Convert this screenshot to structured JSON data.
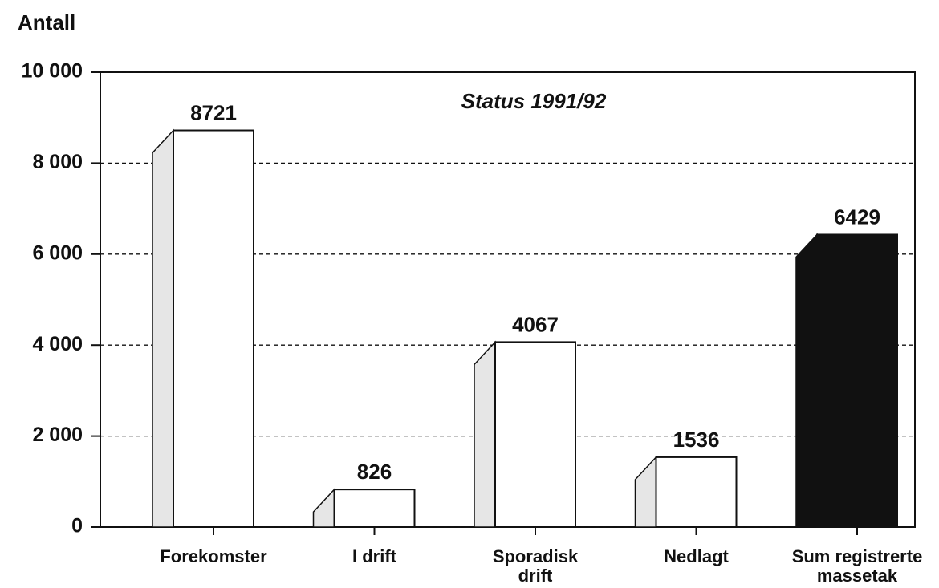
{
  "chart_data": {
    "type": "bar",
    "title": "Status 1991/92",
    "y_label": "Antall",
    "categories": [
      [
        "Forekomster"
      ],
      [
        "I drift"
      ],
      [
        "Sporadisk",
        "drift"
      ],
      [
        "Nedlagt"
      ],
      [
        "Sum registrerte",
        "massetak"
      ]
    ],
    "values": [
      8721,
      826,
      4067,
      1536,
      6429
    ],
    "colors": [
      "#ffffff",
      "#ffffff",
      "#ffffff",
      "#ffffff",
      "#111111"
    ],
    "ylim": [
      0,
      10000
    ],
    "yticks": [
      0,
      {
        "value": 2000,
        "label": "2 000"
      },
      {
        "value": 4000,
        "label": "4 000"
      },
      {
        "value": 6000,
        "label": "6 000"
      },
      {
        "value": 8000,
        "label": "8 000"
      },
      {
        "value": 10000,
        "label": "10 000"
      }
    ],
    "grid": true
  }
}
